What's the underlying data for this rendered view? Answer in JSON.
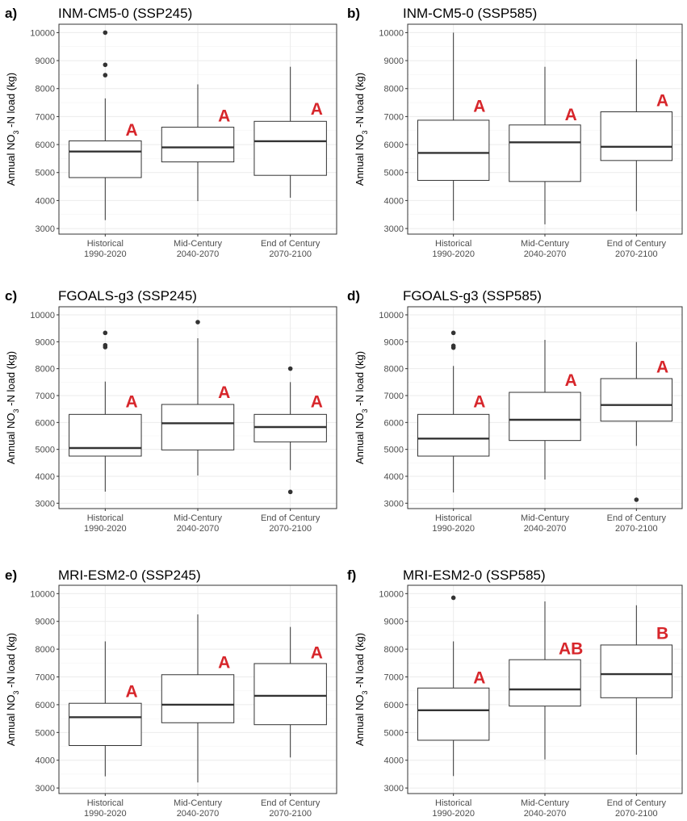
{
  "colors": {
    "significance": "#d7262b",
    "grid": "#ebebeb",
    "box_stroke": "#333333",
    "axis_text": "#4d4d4d"
  },
  "chart_data": [
    {
      "panel": "a)",
      "title": "INM-CM5-0 (SSP245)",
      "type": "boxplot",
      "ylabel_prefix": "Annual NO",
      "ylabel_sub": "3",
      "ylabel_suffix": " -N load (kg)",
      "ylim": [
        2800,
        10300
      ],
      "yticks": [
        3000,
        4000,
        5000,
        6000,
        7000,
        8000,
        9000,
        10000
      ],
      "categories": [
        {
          "line1": "Historical",
          "line2": "1990-2020"
        },
        {
          "line1": "Mid-Century",
          "line2": "2040-2070"
        },
        {
          "line1": "End of Century",
          "line2": "2070-2100"
        }
      ],
      "boxes": [
        {
          "whisker_low": 3300,
          "q1": 4820,
          "median": 5750,
          "q3": 6130,
          "whisker_high": 7650,
          "outliers": [
            8480,
            8850,
            10000
          ],
          "letter": "A",
          "letter_y": 6550
        },
        {
          "whisker_low": 3980,
          "q1": 5380,
          "median": 5900,
          "q3": 6620,
          "whisker_high": 8150,
          "outliers": [],
          "letter": "A",
          "letter_y": 7050
        },
        {
          "whisker_low": 4100,
          "q1": 4900,
          "median": 6120,
          "q3": 6830,
          "whisker_high": 8780,
          "outliers": [],
          "letter": "A",
          "letter_y": 7300
        }
      ]
    },
    {
      "panel": "b)",
      "title": "INM-CM5-0 (SSP585)",
      "type": "boxplot",
      "ylabel_prefix": "Annual NO",
      "ylabel_sub": "3",
      "ylabel_suffix": " -N load (kg)",
      "ylim": [
        2800,
        10300
      ],
      "yticks": [
        3000,
        4000,
        5000,
        6000,
        7000,
        8000,
        9000,
        10000
      ],
      "categories": [
        {
          "line1": "Historical",
          "line2": "1990-2020"
        },
        {
          "line1": "Mid-Century",
          "line2": "2040-2070"
        },
        {
          "line1": "End of Century",
          "line2": "2070-2100"
        }
      ],
      "boxes": [
        {
          "whisker_low": 3280,
          "q1": 4720,
          "median": 5700,
          "q3": 6870,
          "whisker_high": 10000,
          "outliers": [],
          "letter": "A",
          "letter_y": 7400
        },
        {
          "whisker_low": 3150,
          "q1": 4680,
          "median": 6080,
          "q3": 6700,
          "whisker_high": 8780,
          "outliers": [],
          "letter": "A",
          "letter_y": 7100
        },
        {
          "whisker_low": 3620,
          "q1": 5430,
          "median": 5920,
          "q3": 7170,
          "whisker_high": 9050,
          "outliers": [],
          "letter": "A",
          "letter_y": 7600
        }
      ]
    },
    {
      "panel": "c)",
      "title": "FGOALS-g3 (SSP245)",
      "type": "boxplot",
      "ylabel_prefix": "Annual NO",
      "ylabel_sub": "3",
      "ylabel_suffix": " -N load (kg)",
      "ylim": [
        2800,
        10300
      ],
      "yticks": [
        3000,
        4000,
        5000,
        6000,
        7000,
        8000,
        9000,
        10000
      ],
      "categories": [
        {
          "line1": "Historical",
          "line2": "1990-2020"
        },
        {
          "line1": "Mid-Century",
          "line2": "2040-2070"
        },
        {
          "line1": "End of Century",
          "line2": "2070-2100"
        }
      ],
      "boxes": [
        {
          "whisker_low": 3430,
          "q1": 4750,
          "median": 5050,
          "q3": 6300,
          "whisker_high": 7520,
          "outliers": [
            8800,
            8870,
            9330
          ],
          "letter": "A",
          "letter_y": 6800
        },
        {
          "whisker_low": 4030,
          "q1": 4980,
          "median": 5970,
          "q3": 6670,
          "whisker_high": 9130,
          "outliers": [
            9730
          ],
          "letter": "A",
          "letter_y": 7150
        },
        {
          "whisker_low": 4230,
          "q1": 5280,
          "median": 5830,
          "q3": 6300,
          "whisker_high": 7500,
          "outliers": [
            3420,
            8000
          ],
          "letter": "A",
          "letter_y": 6800
        }
      ]
    },
    {
      "panel": "d)",
      "title": "FGOALS-g3 (SSP585)",
      "type": "boxplot",
      "ylabel_prefix": "Annual NO",
      "ylabel_sub": "3",
      "ylabel_suffix": " -N load (kg)",
      "ylim": [
        2800,
        10300
      ],
      "yticks": [
        3000,
        4000,
        5000,
        6000,
        7000,
        8000,
        9000,
        10000
      ],
      "categories": [
        {
          "line1": "Historical",
          "line2": "1990-2020"
        },
        {
          "line1": "Mid-Century",
          "line2": "2040-2070"
        },
        {
          "line1": "End of Century",
          "line2": "2070-2100"
        }
      ],
      "boxes": [
        {
          "whisker_low": 3400,
          "q1": 4750,
          "median": 5400,
          "q3": 6300,
          "whisker_high": 8100,
          "outliers": [
            8780,
            8850,
            9330
          ],
          "letter": "A",
          "letter_y": 6800
        },
        {
          "whisker_low": 3880,
          "q1": 5330,
          "median": 6100,
          "q3": 7120,
          "whisker_high": 9070,
          "outliers": [],
          "letter": "A",
          "letter_y": 7600
        },
        {
          "whisker_low": 5130,
          "q1": 6050,
          "median": 6650,
          "q3": 7630,
          "whisker_high": 8990,
          "outliers": [
            3130
          ],
          "letter": "A",
          "letter_y": 8100
        }
      ]
    },
    {
      "panel": "e)",
      "title": "MRI-ESM2-0 (SSP245)",
      "type": "boxplot",
      "ylabel_prefix": "Annual NO",
      "ylabel_sub": "3",
      "ylabel_suffix": " -N load (kg)",
      "ylim": [
        2800,
        10300
      ],
      "yticks": [
        3000,
        4000,
        5000,
        6000,
        7000,
        8000,
        9000,
        10000
      ],
      "categories": [
        {
          "line1": "Historical",
          "line2": "1990-2020"
        },
        {
          "line1": "Mid-Century",
          "line2": "2040-2070"
        },
        {
          "line1": "End of Century",
          "line2": "2070-2100"
        }
      ],
      "boxes": [
        {
          "whisker_low": 3420,
          "q1": 4530,
          "median": 5550,
          "q3": 6050,
          "whisker_high": 8280,
          "outliers": [],
          "letter": "A",
          "letter_y": 6500
        },
        {
          "whisker_low": 3200,
          "q1": 5350,
          "median": 6000,
          "q3": 7080,
          "whisker_high": 9250,
          "outliers": [],
          "letter": "A",
          "letter_y": 7550
        },
        {
          "whisker_low": 4100,
          "q1": 5280,
          "median": 6320,
          "q3": 7480,
          "whisker_high": 8800,
          "outliers": [],
          "letter": "A",
          "letter_y": 7900
        }
      ]
    },
    {
      "panel": "f)",
      "title": "MRI-ESM2-0 (SSP585)",
      "type": "boxplot",
      "ylabel_prefix": "Annual NO",
      "ylabel_sub": "3",
      "ylabel_suffix": " -N load (kg)",
      "ylim": [
        2800,
        10300
      ],
      "yticks": [
        3000,
        4000,
        5000,
        6000,
        7000,
        8000,
        9000,
        10000
      ],
      "categories": [
        {
          "line1": "Historical",
          "line2": "1990-2020"
        },
        {
          "line1": "Mid-Century",
          "line2": "2040-2070"
        },
        {
          "line1": "End of Century",
          "line2": "2070-2100"
        }
      ],
      "boxes": [
        {
          "whisker_low": 3430,
          "q1": 4720,
          "median": 5800,
          "q3": 6600,
          "whisker_high": 8280,
          "outliers": [
            9850
          ],
          "letter": "A",
          "letter_y": 7000
        },
        {
          "whisker_low": 4030,
          "q1": 5950,
          "median": 6550,
          "q3": 7620,
          "whisker_high": 9720,
          "outliers": [],
          "letter": "AB",
          "letter_y": 8050
        },
        {
          "whisker_low": 4200,
          "q1": 6250,
          "median": 7100,
          "q3": 8150,
          "whisker_high": 9580,
          "outliers": [],
          "letter": "B",
          "letter_y": 8600
        }
      ]
    }
  ]
}
